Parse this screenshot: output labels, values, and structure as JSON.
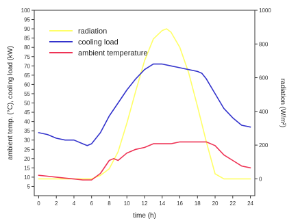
{
  "chart_data": {
    "type": "line",
    "xlabel": "time (h)",
    "ylabel_left": "ambient temp. (°C), cooling load (kW)",
    "ylabel_right": "radiation (W/m²)",
    "xlim": [
      -0.5,
      24.5
    ],
    "ylim_left": [
      0,
      100
    ],
    "ylim_right": [
      -100,
      1000
    ],
    "x_ticks": [
      0,
      2,
      4,
      6,
      8,
      10,
      12,
      14,
      16,
      18,
      20,
      22,
      24
    ],
    "y_left_ticks": [
      5,
      10,
      15,
      20,
      25,
      30,
      35,
      40,
      45,
      50,
      55,
      60,
      65,
      70,
      75,
      80,
      85,
      90,
      95,
      100
    ],
    "y_right_ticks": [
      0,
      200,
      400,
      600,
      800,
      1000
    ],
    "legend_position": "top-left",
    "series": [
      {
        "name": "radiation",
        "axis": "right",
        "color": "#ffff66",
        "x": [
          0,
          2,
          4,
          6,
          7,
          8,
          9,
          10,
          11,
          12,
          13,
          14,
          14.5,
          15,
          16,
          17,
          18,
          19,
          20,
          21,
          22,
          23,
          24
        ],
        "y": [
          0,
          0,
          0,
          0,
          20,
          60,
          160,
          330,
          520,
          700,
          830,
          880,
          890,
          870,
          780,
          630,
          430,
          220,
          30,
          0,
          0,
          0,
          0
        ]
      },
      {
        "name": "cooling load",
        "axis": "left",
        "color": "#3333cc",
        "x": [
          0,
          1,
          2,
          3,
          4,
          5,
          5.5,
          6,
          7,
          8,
          9,
          10,
          11,
          12,
          13,
          14,
          15,
          16,
          17,
          18,
          18.5,
          19,
          20,
          21,
          22,
          23,
          24
        ],
        "y": [
          34,
          33,
          31,
          30,
          30,
          28,
          27,
          28,
          34,
          43,
          50,
          57,
          63,
          68,
          71,
          71,
          70,
          69,
          68,
          67,
          66,
          63,
          55,
          47,
          42,
          38,
          37
        ]
      },
      {
        "name": "ambient temperature",
        "axis": "left",
        "color": "#ee3355",
        "x": [
          0,
          1,
          2,
          3,
          4,
          5,
          6,
          7,
          8,
          8.5,
          9,
          10,
          11,
          12,
          13,
          14,
          15,
          16,
          17,
          18,
          19,
          20,
          21,
          22,
          23,
          24
        ],
        "y": [
          11,
          10.5,
          10,
          9.5,
          9,
          8.5,
          8.5,
          12,
          19,
          20,
          19,
          23,
          25,
          26,
          28,
          28,
          28,
          29,
          29,
          29,
          29,
          27,
          22,
          19,
          16,
          15
        ]
      }
    ]
  }
}
